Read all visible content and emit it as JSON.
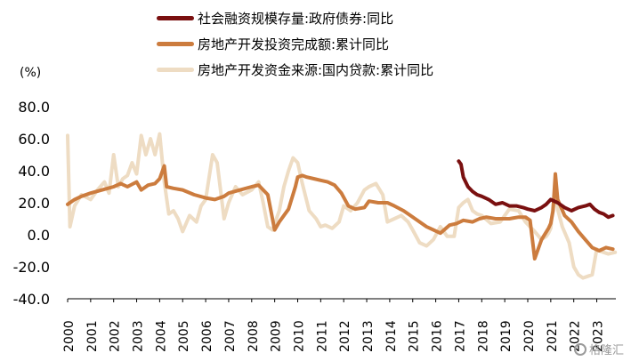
{
  "chart_data": {
    "type": "line",
    "unit_label": "(%)",
    "ylim": [
      -40,
      80
    ],
    "yticks": [
      80.0,
      60.0,
      40.0,
      20.0,
      0.0,
      -20.0,
      -40.0
    ],
    "xticks": [
      "2000",
      "2001",
      "2002",
      "2003",
      "2004",
      "2005",
      "2006",
      "2007",
      "2008",
      "2009",
      "2010",
      "2011",
      "2012",
      "2013",
      "2014",
      "2015",
      "2016",
      "2017",
      "2018",
      "2019",
      "2020",
      "2021",
      "2022",
      "2023"
    ],
    "xlim": [
      2000.0,
      2023.83
    ],
    "grid": false,
    "legend_position": "top",
    "series": [
      {
        "name": "社会融资规模存量:政府债券:同比",
        "color": "#7a1010",
        "x": [
          2017.0,
          2017.1,
          2017.2,
          2017.4,
          2017.6,
          2017.8,
          2018.0,
          2018.3,
          2018.6,
          2018.9,
          2019.2,
          2019.5,
          2019.8,
          2020.0,
          2020.3,
          2020.6,
          2020.8,
          2021.0,
          2021.3,
          2021.6,
          2021.9,
          2022.2,
          2022.5,
          2022.7,
          2022.9,
          2023.1,
          2023.3,
          2023.5,
          2023.7
        ],
        "y": [
          46,
          44,
          36,
          30,
          27,
          25,
          24,
          22,
          19,
          20,
          18,
          18,
          17,
          16,
          15,
          17,
          19,
          22,
          20,
          17,
          15,
          17,
          18,
          19,
          16,
          14,
          13,
          11,
          12
        ]
      },
      {
        "name": "房地产开发投资完成额:累计同比",
        "color": "#cc7c3e",
        "x": [
          2000.0,
          2000.3,
          2000.6,
          2001.0,
          2001.5,
          2002.0,
          2002.3,
          2002.6,
          2003.0,
          2003.2,
          2003.5,
          2003.8,
          2004.0,
          2004.2,
          2004.3,
          2004.6,
          2005.0,
          2005.5,
          2006.0,
          2006.4,
          2006.8,
          2007.0,
          2007.5,
          2008.0,
          2008.3,
          2008.7,
          2009.0,
          2009.2,
          2009.6,
          2009.9,
          2010.0,
          2010.2,
          2010.4,
          2010.7,
          2011.0,
          2011.3,
          2011.6,
          2011.9,
          2012.2,
          2012.5,
          2012.9,
          2013.1,
          2013.5,
          2013.9,
          2014.2,
          2014.6,
          2014.9,
          2015.2,
          2015.6,
          2015.9,
          2016.2,
          2016.6,
          2016.9,
          2017.2,
          2017.6,
          2017.9,
          2018.2,
          2018.6,
          2018.9,
          2019.2,
          2019.6,
          2019.9,
          2020.1,
          2020.3,
          2020.6,
          2020.9,
          2021.0,
          2021.1,
          2021.2,
          2021.3,
          2021.6,
          2021.9,
          2022.2,
          2022.5,
          2022.8,
          2023.1,
          2023.4,
          2023.7
        ],
        "y": [
          19,
          22,
          24,
          26,
          28,
          30,
          32,
          30,
          33,
          28,
          31,
          32,
          35,
          43,
          30,
          29,
          28,
          25,
          23,
          22,
          24,
          26,
          28,
          30,
          31,
          25,
          3,
          8,
          16,
          30,
          36,
          37,
          36,
          35,
          34,
          33,
          31,
          26,
          18,
          16,
          17,
          21,
          20,
          20,
          18,
          15,
          12,
          9,
          5,
          3,
          1,
          6,
          7,
          9,
          8,
          10,
          11,
          10,
          10,
          10,
          11,
          11,
          9,
          -15,
          -3,
          4,
          7,
          15,
          38,
          22,
          12,
          8,
          2,
          -3,
          -8,
          -10,
          -8,
          -9
        ]
      },
      {
        "name": "房地产开发资金来源:国内贷款:累计同比",
        "color": "#eedcc3",
        "x": [
          2000.0,
          2000.1,
          2000.3,
          2000.6,
          2001.0,
          2001.3,
          2001.6,
          2001.8,
          2002.0,
          2002.2,
          2002.4,
          2002.6,
          2002.8,
          2003.0,
          2003.2,
          2003.4,
          2003.6,
          2003.8,
          2004.0,
          2004.2,
          2004.4,
          2004.6,
          2004.8,
          2005.0,
          2005.3,
          2005.6,
          2005.8,
          2006.0,
          2006.3,
          2006.5,
          2006.8,
          2007.0,
          2007.3,
          2007.6,
          2008.0,
          2008.3,
          2008.5,
          2008.7,
          2008.9,
          2009.2,
          2009.4,
          2009.6,
          2009.8,
          2010.0,
          2010.2,
          2010.5,
          2010.8,
          2011.0,
          2011.2,
          2011.5,
          2011.8,
          2012.0,
          2012.3,
          2012.6,
          2012.9,
          2013.1,
          2013.4,
          2013.7,
          2013.9,
          2014.2,
          2014.5,
          2014.8,
          2015.0,
          2015.3,
          2015.6,
          2015.9,
          2016.2,
          2016.5,
          2016.8,
          2017.0,
          2017.2,
          2017.4,
          2017.6,
          2017.8,
          2018.0,
          2018.4,
          2018.8,
          2019.2,
          2019.6,
          2019.9,
          2020.1,
          2020.3,
          2020.6,
          2020.8,
          2020.9,
          2021.0,
          2021.1,
          2021.2,
          2021.3,
          2021.5,
          2021.8,
          2022.0,
          2022.2,
          2022.4,
          2022.6,
          2022.8,
          2023.0,
          2023.1,
          2023.3,
          2023.5,
          2023.8
        ],
        "y": [
          62,
          5,
          18,
          25,
          22,
          28,
          33,
          26,
          50,
          30,
          35,
          37,
          45,
          38,
          62,
          50,
          60,
          50,
          63,
          33,
          13,
          15,
          10,
          2,
          12,
          8,
          18,
          22,
          50,
          45,
          10,
          20,
          30,
          25,
          28,
          33,
          20,
          5,
          3,
          15,
          30,
          40,
          48,
          45,
          32,
          15,
          10,
          5,
          6,
          4,
          8,
          18,
          15,
          20,
          28,
          30,
          32,
          25,
          8,
          10,
          12,
          8,
          3,
          -5,
          -7,
          -3,
          5,
          -1,
          -1,
          17,
          20,
          22,
          15,
          13,
          12,
          7,
          8,
          16,
          15,
          8,
          5,
          2,
          -3,
          -1,
          1,
          4,
          18,
          25,
          16,
          5,
          -5,
          -20,
          -25,
          -27,
          -26,
          -25,
          -9,
          -10,
          -11,
          -12,
          -11
        ]
      }
    ]
  },
  "watermark": "格隆汇"
}
